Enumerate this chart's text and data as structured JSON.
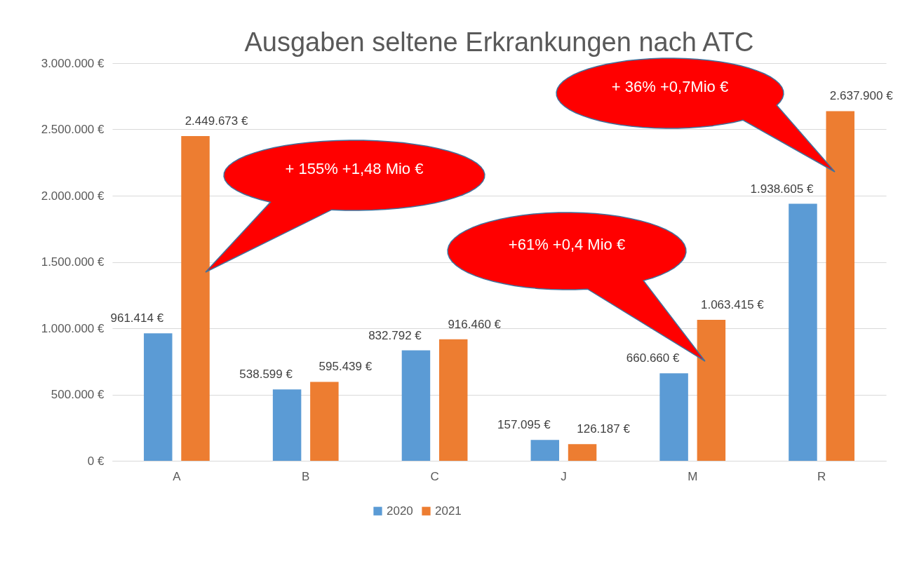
{
  "chart_data": {
    "type": "bar",
    "title": "Ausgaben seltene Erkrankungen nach ATC",
    "categories": [
      "A",
      "B",
      "C",
      "J",
      "M",
      "R"
    ],
    "series": [
      {
        "name": "2020",
        "color": "#5b9bd5",
        "values": [
          961414,
          538599,
          832792,
          157095,
          660660,
          1938605
        ],
        "value_labels": [
          "961.414 €",
          "538.599 €",
          "832.792 €",
          "157.095 €",
          "660.660 €",
          "1.938.605 €"
        ]
      },
      {
        "name": "2021",
        "color": "#ed7d31",
        "values": [
          2449673,
          595439,
          916460,
          126187,
          1063415,
          2637900
        ],
        "value_labels": [
          "2.449.673 €",
          "595.439 €",
          "916.460 €",
          "126.187 €",
          "1.063.415 €",
          "2.637.900 €"
        ]
      }
    ],
    "ylim": [
      0,
      3000000
    ],
    "yticks": [
      {
        "value": 0,
        "label": "0 €"
      },
      {
        "value": 500000,
        "label": "500.000 €"
      },
      {
        "value": 1000000,
        "label": "1.000.000 €"
      },
      {
        "value": 1500000,
        "label": "1.500.000 €"
      },
      {
        "value": 2000000,
        "label": "2.000.000 €"
      },
      {
        "value": 2500000,
        "label": "2.500.000 €"
      },
      {
        "value": 3000000,
        "label": "3.000.000 €"
      }
    ],
    "grid": "y",
    "legend": "bottom",
    "annotations": [
      "+ 155% +1,48 Mio €",
      "+61% +0,4 Mio €",
      "+ 36% +0,7Mio €"
    ]
  }
}
